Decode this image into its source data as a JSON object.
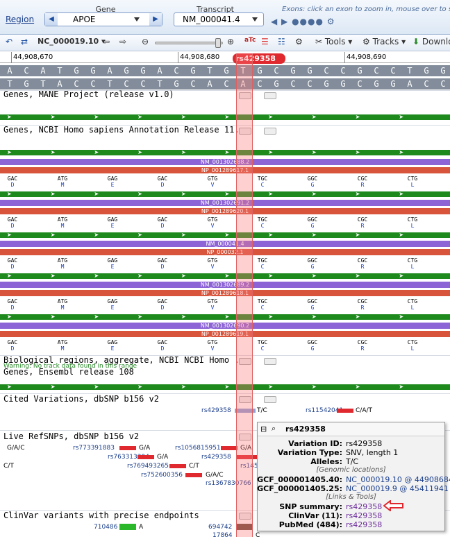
{
  "header": {
    "region_link": "Region",
    "gene_label": "Gene",
    "gene_value": "APOE",
    "transcript_label": "Transcript",
    "transcript_value": "NM_000041.4",
    "exon_message": "Exons: click an exon to zoom in, mouse over to see de"
  },
  "toolbar": {
    "sequence_select": "NC_000019.10",
    "tools_label": "Tools",
    "tracks_label": "Tracks",
    "download_label": "Downlo"
  },
  "ruler": {
    "positions": [
      "44,908,670",
      "44,908,680",
      "44,908,690"
    ],
    "snp_marker": "rs429358"
  },
  "sequence": {
    "top": [
      "A",
      "C",
      "A",
      "T",
      "G",
      "G",
      "A",
      "G",
      "G",
      "A",
      "C",
      "G",
      "T",
      "G",
      "T",
      "G",
      "C",
      "G",
      "G",
      "C",
      "C",
      "G",
      "C",
      "C",
      "T",
      "G",
      "G"
    ],
    "bottom": [
      "T",
      "G",
      "T",
      "A",
      "C",
      "C",
      "T",
      "C",
      "C",
      "T",
      "G",
      "C",
      "A",
      "C",
      "A",
      "C",
      "G",
      "C",
      "C",
      "G",
      "G",
      "C",
      "G",
      "G",
      "A",
      "C",
      "C"
    ]
  },
  "tracks": {
    "mane_title": "Genes, MANE Project (release v1.0)",
    "ncbi_title": "Genes, NCBI Homo sapiens Annotation Release 11...",
    "transcripts": [
      {
        "nm": "NM_001302688.2",
        "np": "NP_001289617.1"
      },
      {
        "nm": "NM_001302691.2",
        "np": "NP_001289620.1"
      },
      {
        "nm": "NM_000041.4",
        "np": "NP_000032.1"
      },
      {
        "nm": "NM_001302689.2",
        "np": "NP_001289618.1"
      },
      {
        "nm": "NM_001302690.2",
        "np": "NP_001289619.1"
      }
    ],
    "codons": [
      {
        "c": "GAC",
        "a": "D"
      },
      {
        "c": "ATG",
        "a": "M"
      },
      {
        "c": "GAG",
        "a": "E"
      },
      {
        "c": "GAC",
        "a": "D"
      },
      {
        "c": "GTG",
        "a": "V"
      },
      {
        "c": "TGC",
        "a": "C"
      },
      {
        "c": "GGC",
        "a": "G"
      },
      {
        "c": "CGC",
        "a": "R"
      },
      {
        "c": "CTG",
        "a": "L"
      }
    ],
    "bio_title": "Biological regions, aggregate, NCBI NCBI Homo ...",
    "bio_warning": "Warning: No track data found in this range",
    "ensembl_title": "Genes, Ensembl release 108",
    "cited_title": "Cited Variations, dbSNP b156 v2",
    "cited_left": "rs429358",
    "cited_left_allele": "T/C",
    "cited_right": "rs11542041",
    "cited_right_allele": "C/A/T",
    "live_title": "Live RefSNPs, dbSNP b156 v2",
    "live_items": [
      "G/A/C",
      "rs773391883",
      "G/A",
      "rs1056815951",
      "G/A",
      "rs763313394",
      "G/A",
      "rs429358",
      "C/T",
      "rs769493265",
      "C/T",
      "rs1458",
      "rs752600356",
      "G/A/C",
      "rs1367830766"
    ],
    "clinvar_title": "ClinVar variants with precise endpoints",
    "clinvar_items": [
      "710486",
      "A",
      "694742",
      "17864",
      "C"
    ]
  },
  "popup": {
    "title": "rs429358",
    "rows": [
      {
        "k": "Variation ID:",
        "v": "rs429358"
      },
      {
        "k": "Variation Type:",
        "v": "SNV, length 1"
      },
      {
        "k": "Alleles:",
        "v": "T/C"
      }
    ],
    "genomic_header": "[Genomic locations]",
    "genomic": [
      {
        "k": "GCF_000001405.40:",
        "v": "NC_000019.10 @ 44908684"
      },
      {
        "k": "GCF_000001405.25:",
        "v": "NC_000019.9 @ 45411941"
      }
    ],
    "links_header": "[Links & Tools]",
    "links": [
      {
        "k": "SNP summary:",
        "v": "rs429358"
      },
      {
        "k": "ClinVar (11):",
        "v": "rs429358"
      },
      {
        "k": "PubMed (484):",
        "v": "rs429358"
      }
    ]
  },
  "colors": {
    "highlight": "#ff7878",
    "snp_red": "#e0292f",
    "gene_green": "#1e8a1e",
    "mrna_purple": "#8d64d6",
    "protein_red": "#d8553c"
  }
}
